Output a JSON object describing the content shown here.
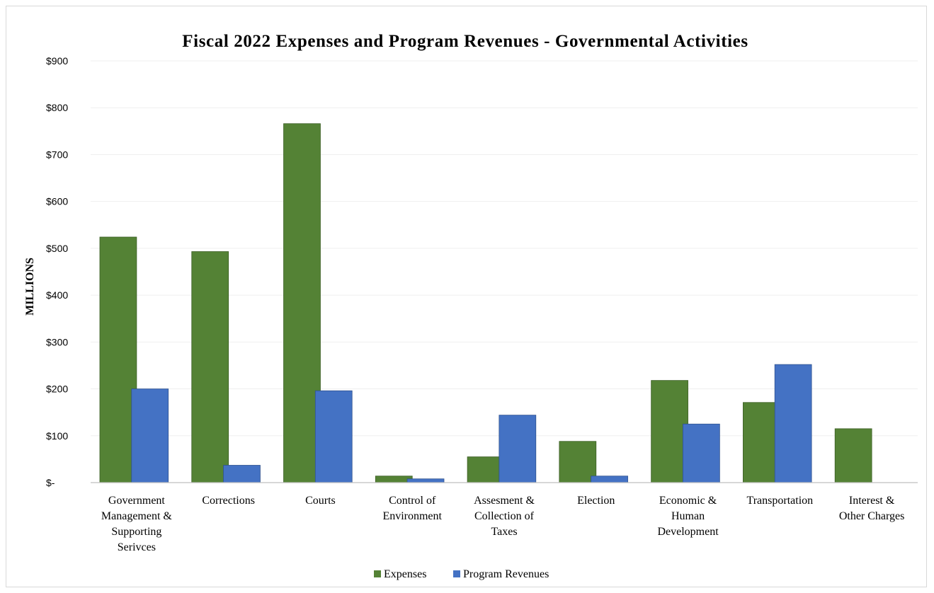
{
  "chart_data": {
    "type": "bar",
    "title": "Fiscal 2022 Expenses and Program Revenues - Governmental Activities",
    "ylabel": "MILLIONS",
    "xlabel": "",
    "ylim": [
      0,
      900
    ],
    "y_ticks": [
      {
        "value": 0,
        "label": "$-"
      },
      {
        "value": 100,
        "label": "$100"
      },
      {
        "value": 200,
        "label": "$200"
      },
      {
        "value": 300,
        "label": "$300"
      },
      {
        "value": 400,
        "label": "$400"
      },
      {
        "value": 500,
        "label": "$500"
      },
      {
        "value": 600,
        "label": "$600"
      },
      {
        "value": 700,
        "label": "$700"
      },
      {
        "value": 800,
        "label": "$800"
      },
      {
        "value": 900,
        "label": "$900"
      }
    ],
    "categories": [
      [
        "Government",
        "Management  &",
        "Supporting",
        "Serivces"
      ],
      [
        "Corrections"
      ],
      [
        "Courts"
      ],
      [
        "Control  of",
        "Environment"
      ],
      [
        "Assesment  &",
        "Collection  of",
        "Taxes"
      ],
      [
        "Election"
      ],
      [
        "Economic  &",
        "Human",
        "Development"
      ],
      [
        "Transportation"
      ],
      [
        "Interest  &",
        "Other Charges"
      ]
    ],
    "series": [
      {
        "name": "Expenses",
        "color": "#548235",
        "values": [
          524,
          493,
          766,
          14,
          55,
          88,
          218,
          171,
          115
        ]
      },
      {
        "name": "Program Revenues",
        "color": "#4472c4",
        "values": [
          200,
          37,
          196,
          8,
          144,
          14,
          125,
          252,
          0
        ]
      }
    ],
    "grid": true,
    "legend_position": "bottom"
  }
}
